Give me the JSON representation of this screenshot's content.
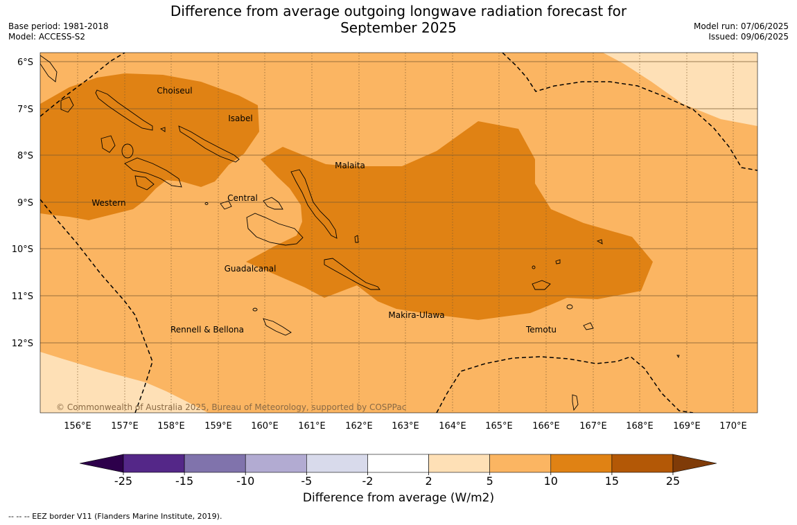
{
  "title_line1": "Difference from average outgoing longwave radiation forecast for",
  "title_line2": "September 2025",
  "meta_left": {
    "base_period": "Base period: 1981-2018",
    "model": "Model: ACCESS-S2"
  },
  "meta_right": {
    "model_run": "Model run: 07/06/2025",
    "issued": "Issued: 09/06/2025"
  },
  "map": {
    "lat_labels": [
      "6°S",
      "7°S",
      "8°S",
      "9°S",
      "10°S",
      "11°S",
      "12°S"
    ],
    "lon_labels": [
      "156°E",
      "157°E",
      "158°E",
      "159°E",
      "160°E",
      "161°E",
      "162°E",
      "163°E",
      "164°E",
      "165°E",
      "166°E",
      "167°E",
      "168°E",
      "169°E",
      "170°E"
    ],
    "provinces": [
      "Choiseul",
      "Isabel",
      "Malaita",
      "Western",
      "Central",
      "Guadalcanal",
      "Makira-Ulawa",
      "Rennell & Bellona",
      "Temotu"
    ],
    "copyright": "© Commonwealth of Australia 2025, Bureau of Meteorology, supported by COSPPac",
    "colors": {
      "cat_2_5": "#fee0b6",
      "cat_5_10": "#fbb562",
      "cat_10_15": "#e08214",
      "boundary": "#000000"
    }
  },
  "colorbar": {
    "ticks": [
      "-25",
      "-15",
      "-10",
      "-5",
      "-2",
      "2",
      "5",
      "10",
      "15",
      "25"
    ],
    "colors": [
      "#2d004b",
      "#542788",
      "#8073ac",
      "#b2abd2",
      "#d8daeb",
      "#ffffff",
      "#fee0b6",
      "#fbb562",
      "#e08214",
      "#b35806",
      "#7f3b08"
    ],
    "title": "Difference from average (W/m2)"
  },
  "footnote": "--  --  -- EEZ border V11 (Flanders Marine Institute, 2019)."
}
